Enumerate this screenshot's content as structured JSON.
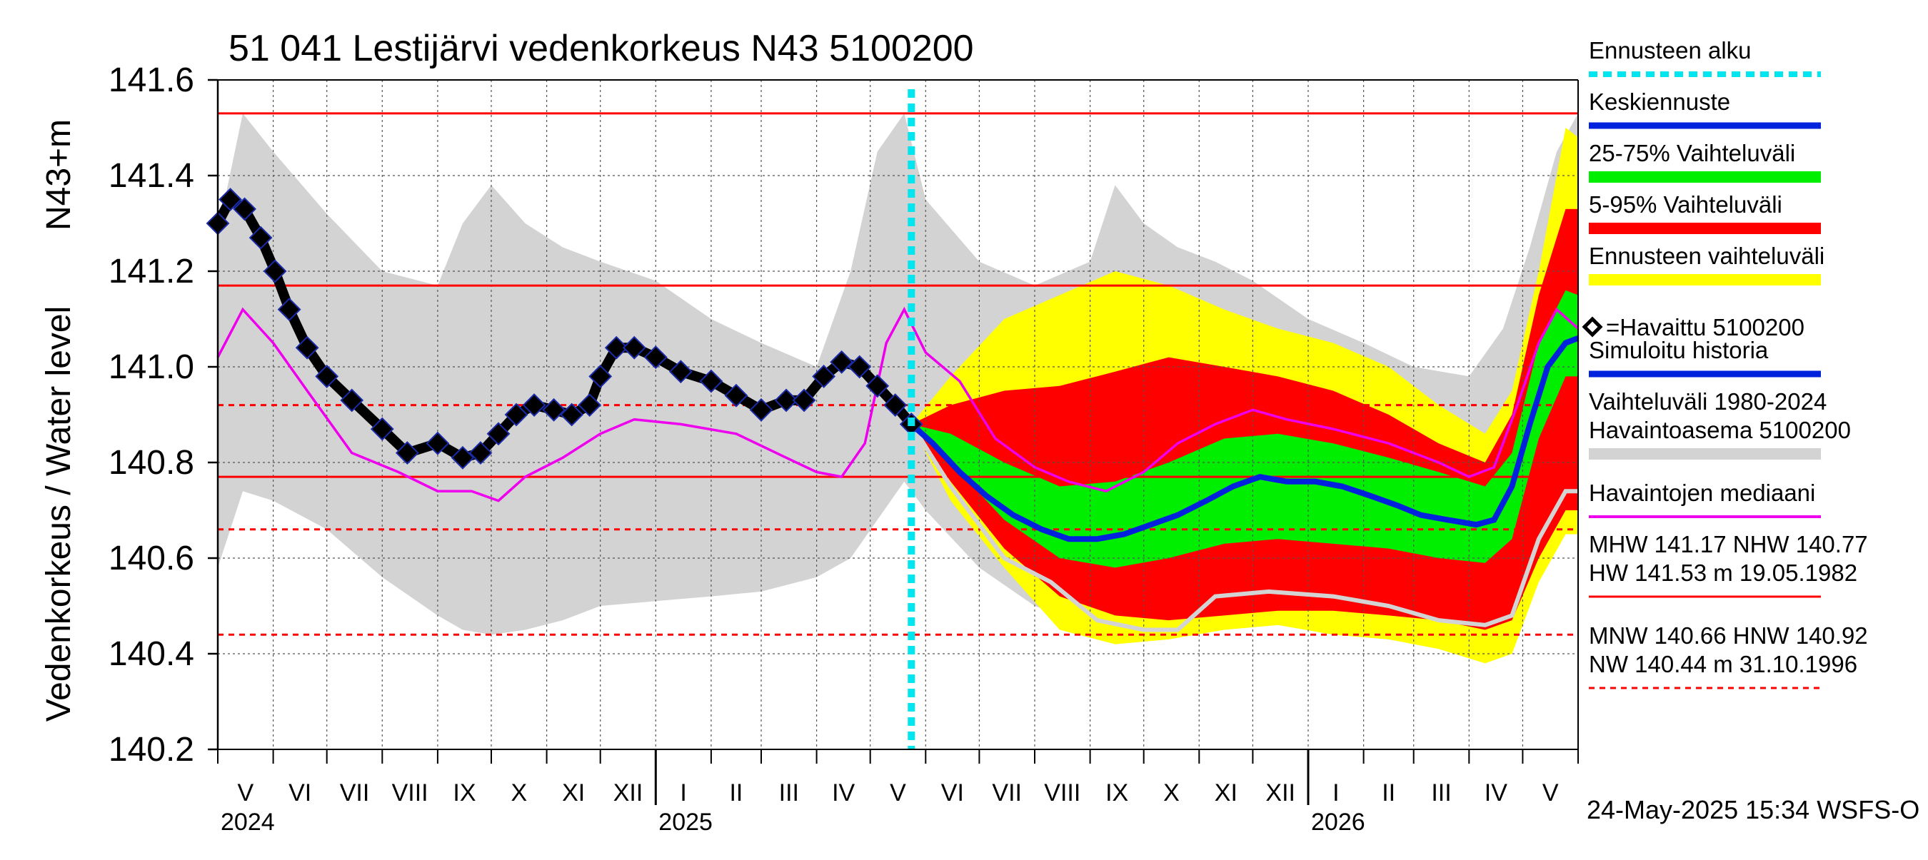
{
  "chart_data": {
    "type": "line",
    "title": "51 041 Lestijärvi vedenkorkeus N43 5100200",
    "ylabel": "Vedenkorkeus / Water level",
    "ylabel_unit": "N43+m",
    "ylim": [
      140.2,
      141.6
    ],
    "y_ticks": [
      "141.6",
      "141.4",
      "141.2",
      "141.0",
      "140.8",
      "140.6",
      "140.4",
      "140.2"
    ],
    "y_tick_values": [
      141.6,
      141.4,
      141.2,
      141.0,
      140.8,
      140.6,
      140.4,
      140.2
    ],
    "x_start": "2024-05-01",
    "x_end": "2026-06-01",
    "months": [
      "V",
      "VI",
      "VII",
      "VIII",
      "IX",
      "X",
      "XI",
      "XII",
      "I",
      "II",
      "III",
      "IV",
      "V",
      "VI",
      "VII",
      "VIII",
      "IX",
      "X",
      "XI",
      "XII",
      "I",
      "II",
      "III",
      "IV",
      "V"
    ],
    "years": [
      "2024",
      "2025",
      "2026"
    ],
    "forecast_start": "2025-05-24",
    "grid": true,
    "legend_position": "right",
    "legend": [
      {
        "label": "Ennusteen alku",
        "color": "#00e5ee",
        "style": "dotted"
      },
      {
        "label": "Keskiennuste",
        "color": "#0022dd",
        "style": "solid"
      },
      {
        "label": "25-75% Vaihteluväli",
        "color": "#00ee00",
        "style": "band"
      },
      {
        "label": "5-95% Vaihteluväli",
        "color": "#ff0000",
        "style": "band"
      },
      {
        "label": "Ennusteen vaihteluväli",
        "color": "#ffff00",
        "style": "band"
      },
      {
        "label": "=Havaittu 5100200",
        "color": "#000000",
        "style": "marker"
      },
      {
        "label": "Simuloitu historia",
        "color": "#0022dd",
        "style": "solid"
      },
      {
        "label": "Vaihteluväli 1980-2024",
        "label2": " Havaintoasema 5100200",
        "color": "#d3d3d3",
        "style": "band"
      },
      {
        "label": "Havaintojen mediaani",
        "color": "#ee00ee",
        "style": "solid"
      },
      {
        "label": "MHW 141.17 NHW 140.77",
        "label2": "HW 141.53 m 19.05.1982",
        "color": "#ff0000",
        "style": "solid"
      },
      {
        "label": "MNW 140.66 HNW 140.92",
        "label2": "NW 140.44 m 31.10.1996",
        "color": "#ff0000",
        "style": "dashed"
      }
    ],
    "reference_lines": [
      {
        "name": "HW",
        "value": 141.53,
        "style": "solid"
      },
      {
        "name": "MHW",
        "value": 141.17,
        "style": "solid"
      },
      {
        "name": "NHW",
        "value": 140.77,
        "style": "solid"
      },
      {
        "name": "HNW",
        "value": 140.92,
        "style": "dashed"
      },
      {
        "name": "MNW",
        "value": 140.66,
        "style": "dashed"
      },
      {
        "name": "NW",
        "value": 140.44,
        "style": "dashed"
      }
    ],
    "footer": "24-May-2025 15:34 WSFS-O",
    "series": [
      {
        "name": "=Havaittu 5100200",
        "x": [
          "2024-05-01",
          "2024-05-08",
          "2024-05-16",
          "2024-05-25",
          "2024-06-02",
          "2024-06-10",
          "2024-06-20",
          "2024-07-01",
          "2024-07-15",
          "2024-08-01",
          "2024-08-15",
          "2024-09-01",
          "2024-09-15",
          "2024-09-25",
          "2024-10-05",
          "2024-10-15",
          "2024-10-25",
          "2024-11-05",
          "2024-11-15",
          "2024-11-25",
          "2024-12-01",
          "2024-12-10",
          "2024-12-20",
          "2025-01-01",
          "2025-01-15",
          "2025-02-01",
          "2025-02-15",
          "2025-03-01",
          "2025-03-15",
          "2025-03-25",
          "2025-04-05",
          "2025-04-15",
          "2025-04-25",
          "2025-05-05",
          "2025-05-15",
          "2025-05-24"
        ],
        "y": [
          141.3,
          141.35,
          141.33,
          141.27,
          141.2,
          141.12,
          141.04,
          140.98,
          140.93,
          140.87,
          140.82,
          140.84,
          140.81,
          140.82,
          140.86,
          140.9,
          140.92,
          140.91,
          140.9,
          140.92,
          140.98,
          141.04,
          141.04,
          141.02,
          140.99,
          140.97,
          140.94,
          140.91,
          140.93,
          140.93,
          140.98,
          141.01,
          141.0,
          140.96,
          140.92,
          140.88
        ]
      },
      {
        "name": "Havaintojen mediaani",
        "x": [
          "2024-05-01",
          "2024-05-15",
          "2024-06-01",
          "2024-06-20",
          "2024-07-15",
          "2024-08-10",
          "2024-09-01",
          "2024-09-20",
          "2024-10-05",
          "2024-10-20",
          "2024-11-10",
          "2024-12-01",
          "2024-12-20",
          "2025-01-15",
          "2025-02-15",
          "2025-03-15",
          "2025-04-01",
          "2025-04-15",
          "2025-04-28",
          "2025-05-10",
          "2025-05-20",
          "2025-06-01",
          "2025-06-20",
          "2025-07-10",
          "2025-08-01",
          "2025-08-20",
          "2025-09-10",
          "2025-10-01",
          "2025-10-20",
          "2025-11-10",
          "2025-12-01",
          "2025-12-20",
          "2026-01-15",
          "2026-02-15",
          "2026-03-15",
          "2026-04-01",
          "2026-04-15",
          "2026-04-28",
          "2026-05-10",
          "2026-05-20",
          "2026-06-01"
        ],
        "y": [
          141.02,
          141.12,
          141.05,
          140.95,
          140.82,
          140.78,
          140.74,
          140.74,
          140.72,
          140.77,
          140.81,
          140.86,
          140.89,
          140.88,
          140.86,
          140.81,
          140.78,
          140.77,
          140.84,
          141.05,
          141.12,
          141.03,
          140.97,
          140.85,
          140.79,
          140.76,
          140.74,
          140.78,
          140.84,
          140.88,
          140.91,
          140.89,
          140.87,
          140.84,
          140.8,
          140.77,
          140.79,
          140.92,
          141.05,
          141.12,
          141.08
        ]
      },
      {
        "name": "Keskiennuste",
        "x": [
          "2025-05-24",
          "2025-06-05",
          "2025-06-20",
          "2025-07-05",
          "2025-07-20",
          "2025-08-05",
          "2025-08-20",
          "2025-09-05",
          "2025-09-20",
          "2025-10-05",
          "2025-10-20",
          "2025-11-05",
          "2025-11-20",
          "2025-12-05",
          "2025-12-20",
          "2026-01-05",
          "2026-01-20",
          "2026-02-05",
          "2026-02-20",
          "2026-03-05",
          "2026-03-20",
          "2026-04-05",
          "2026-04-15",
          "2026-04-25",
          "2026-05-05",
          "2026-05-15",
          "2026-05-25",
          "2026-06-01"
        ],
        "y": [
          140.88,
          140.84,
          140.78,
          140.73,
          140.69,
          140.66,
          140.64,
          140.64,
          140.65,
          140.67,
          140.69,
          140.72,
          140.75,
          140.77,
          140.76,
          140.76,
          140.75,
          140.73,
          140.71,
          140.69,
          140.68,
          140.67,
          140.68,
          140.75,
          140.88,
          141.0,
          141.05,
          141.06
        ]
      }
    ],
    "bands": [
      {
        "name": "Vaihteluväli 1980-2024",
        "x": [
          "2024-05-01",
          "2024-05-15",
          "2024-06-01",
          "2024-07-01",
          "2024-08-01",
          "2024-09-01",
          "2024-09-15",
          "2024-10-01",
          "2024-10-20",
          "2024-11-10",
          "2024-12-01",
          "2025-01-01",
          "2025-02-01",
          "2025-03-01",
          "2025-04-01",
          "2025-04-20",
          "2025-05-05",
          "2025-05-20",
          "2025-06-01",
          "2025-07-01",
          "2025-08-01",
          "2025-09-01",
          "2025-09-15",
          "2025-10-01",
          "2025-10-20",
          "2025-11-10",
          "2025-12-01",
          "2026-01-01",
          "2026-02-01",
          "2026-03-01",
          "2026-04-01",
          "2026-04-20",
          "2026-05-05",
          "2026-05-20",
          "2026-06-01"
        ],
        "low": [
          140.58,
          140.74,
          140.72,
          140.66,
          140.56,
          140.48,
          140.45,
          140.44,
          140.45,
          140.47,
          140.5,
          140.51,
          140.52,
          140.53,
          140.56,
          140.6,
          140.68,
          140.76,
          140.7,
          140.58,
          140.5,
          140.46,
          140.44,
          140.44,
          140.45,
          140.48,
          140.5,
          140.51,
          140.52,
          140.53,
          140.55,
          140.6,
          140.68,
          140.76,
          140.74
        ],
        "high": [
          141.28,
          141.53,
          141.45,
          141.32,
          141.2,
          141.17,
          141.3,
          141.38,
          141.3,
          141.25,
          141.22,
          141.18,
          141.1,
          141.05,
          141.0,
          141.2,
          141.45,
          141.53,
          141.35,
          141.22,
          141.17,
          141.22,
          141.38,
          141.3,
          141.25,
          141.22,
          141.18,
          141.1,
          141.05,
          141.0,
          140.98,
          141.08,
          141.25,
          141.45,
          141.53
        ]
      },
      {
        "name": "Ennusteen vaihteluväli",
        "x": [
          "2025-05-24",
          "2025-06-15",
          "2025-07-15",
          "2025-08-15",
          "2025-09-15",
          "2025-10-15",
          "2025-11-15",
          "2025-12-15",
          "2026-01-15",
          "2026-02-15",
          "2026-03-15",
          "2026-04-10",
          "2026-04-25",
          "2026-05-10",
          "2026-05-25",
          "2026-06-01"
        ],
        "low": [
          140.88,
          140.72,
          140.58,
          140.45,
          140.42,
          140.43,
          140.45,
          140.46,
          140.44,
          140.43,
          140.41,
          140.38,
          140.4,
          140.55,
          140.65,
          140.65
        ],
        "high": [
          140.88,
          140.98,
          141.1,
          141.15,
          141.2,
          141.17,
          141.12,
          141.08,
          141.05,
          141.0,
          140.92,
          140.86,
          140.95,
          141.2,
          141.5,
          141.48
        ]
      },
      {
        "name": "5-95% Vaihteluväli",
        "x": [
          "2025-05-24",
          "2025-06-15",
          "2025-07-15",
          "2025-08-15",
          "2025-09-15",
          "2025-10-15",
          "2025-11-15",
          "2025-12-15",
          "2026-01-15",
          "2026-02-15",
          "2026-03-15",
          "2026-04-10",
          "2026-04-25",
          "2026-05-10",
          "2026-05-25",
          "2026-06-01"
        ],
        "low": [
          140.88,
          140.76,
          140.62,
          140.52,
          140.48,
          140.47,
          140.48,
          140.49,
          140.49,
          140.48,
          140.47,
          140.45,
          140.47,
          140.6,
          140.7,
          140.7
        ],
        "high": [
          140.88,
          140.92,
          140.95,
          140.96,
          140.99,
          141.02,
          141.0,
          140.98,
          140.95,
          140.9,
          140.84,
          140.8,
          140.9,
          141.15,
          141.33,
          141.33
        ]
      },
      {
        "name": "25-75% Vaihteluväli",
        "x": [
          "2025-05-24",
          "2025-06-15",
          "2025-07-15",
          "2025-08-15",
          "2025-09-15",
          "2025-10-15",
          "2025-11-15",
          "2025-12-15",
          "2026-01-15",
          "2026-02-15",
          "2026-03-15",
          "2026-04-10",
          "2026-04-25",
          "2026-05-10",
          "2026-05-25",
          "2026-06-01"
        ],
        "low": [
          140.88,
          140.8,
          140.68,
          140.6,
          140.58,
          140.6,
          140.63,
          140.64,
          140.63,
          140.62,
          140.6,
          140.59,
          140.64,
          140.85,
          140.98,
          140.98
        ],
        "high": [
          140.88,
          140.86,
          140.8,
          140.75,
          140.76,
          140.8,
          140.85,
          140.86,
          140.84,
          140.81,
          140.78,
          140.75,
          140.82,
          141.05,
          141.16,
          141.15
        ]
      }
    ],
    "simulated_low_line": {
      "name": "Simuloitu minimi",
      "x": [
        "2025-05-24",
        "2025-06-15",
        "2025-07-15",
        "2025-08-10",
        "2025-09-05",
        "2025-10-01",
        "2025-10-20",
        "2025-11-10",
        "2025-12-10",
        "2026-01-15",
        "2026-02-15",
        "2026-03-15",
        "2026-04-10",
        "2026-04-25",
        "2026-05-10",
        "2026-05-25",
        "2026-06-01"
      ],
      "y": [
        140.88,
        140.75,
        140.6,
        140.55,
        140.47,
        140.45,
        140.45,
        140.52,
        140.53,
        140.52,
        140.5,
        140.47,
        140.46,
        140.48,
        140.64,
        140.74,
        140.74
      ]
    }
  }
}
